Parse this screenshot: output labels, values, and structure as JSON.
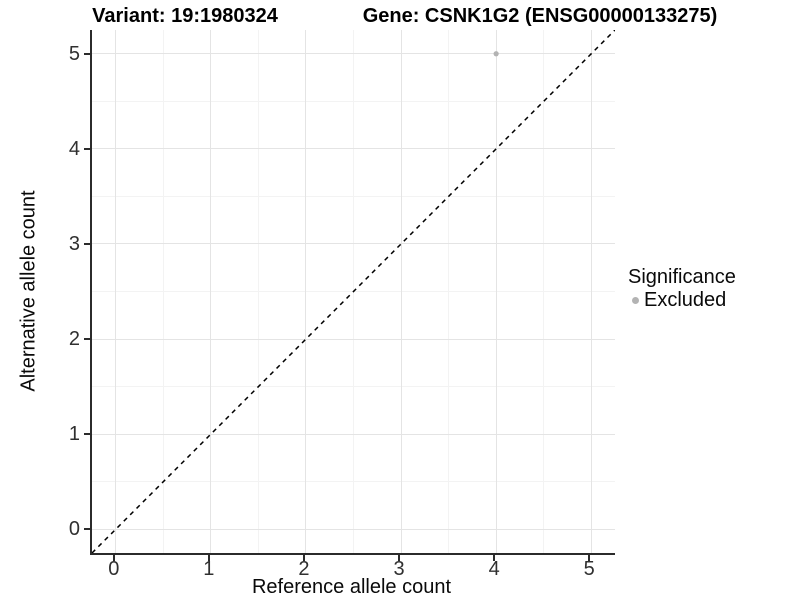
{
  "header": {
    "variant_title": "Variant: 19:1980324",
    "gene_title": "Gene: CSNK1G2 (ENSG00000133275)"
  },
  "chart_data": {
    "type": "scatter",
    "title": "Variant: 19:1980324  /  Gene: CSNK1G2 (ENSG00000133275)",
    "xlabel": "Reference allele count",
    "ylabel": "Alternative allele count",
    "xlim": [
      -0.25,
      5.25
    ],
    "ylim": [
      -0.25,
      5.25
    ],
    "x_ticks": [
      0,
      1,
      2,
      3,
      4,
      5
    ],
    "y_ticks": [
      0,
      1,
      2,
      3,
      4,
      5
    ],
    "grid": {
      "major": true,
      "minor": true
    },
    "points": [
      {
        "x": 4,
        "y": 5,
        "significance": "Excluded"
      }
    ],
    "identity_line": {
      "style": "dashed",
      "from": [
        -0.25,
        -0.25
      ],
      "to": [
        5.25,
        5.25
      ]
    },
    "legend": {
      "position": "right",
      "title": "Significance",
      "items": [
        {
          "label": "Excluded",
          "color": "#b3b3b3"
        }
      ]
    }
  },
  "colors": {
    "point": "#b3b3b3",
    "grid_major": "#e4e4e4",
    "grid_minor": "#f3f3f3",
    "axis_line": "#2b2b2b",
    "identity_line": "#000000",
    "background": "#ffffff"
  }
}
